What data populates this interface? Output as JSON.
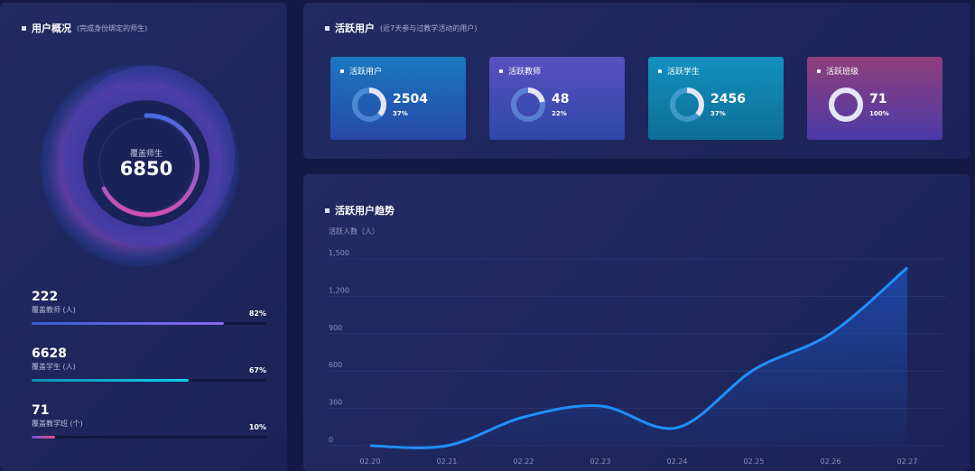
{
  "overview": {
    "title": "用户概况",
    "subtitle": "(完成身份绑定的师生)",
    "center_label": "覆盖师生",
    "center_value": "6850",
    "stats": [
      {
        "value": "222",
        "label": "覆盖教师 (人)",
        "percent": "82%",
        "fraction": 0.82
      },
      {
        "value": "6628",
        "label": "覆盖学生 (人)",
        "percent": "67%",
        "fraction": 0.67
      },
      {
        "value": "71",
        "label": "覆盖教学班 (个)",
        "percent": "10%",
        "fraction": 0.1
      }
    ]
  },
  "active": {
    "title": "活跃用户",
    "subtitle": "(近7天参与过教学活动的用户)",
    "cards": [
      {
        "label": "活跃用户",
        "value": "2504",
        "percent": "37%",
        "fraction": 0.37,
        "color": "#2a5fbf"
      },
      {
        "label": "活跃教师",
        "value": "48",
        "percent": "22%",
        "fraction": 0.22,
        "color": "#5a4fbf"
      },
      {
        "label": "活跃学生",
        "value": "2456",
        "percent": "37%",
        "fraction": 0.37,
        "color": "#0f87b0"
      },
      {
        "label": "活跃班级",
        "value": "71",
        "percent": "100%",
        "fraction": 1.0,
        "color": "#8a3f8a"
      }
    ]
  },
  "trend": {
    "title": "活跃用户趋势"
  },
  "chart_data": {
    "type": "area",
    "ylabel": "活跃人数（人）",
    "ylim": [
      0,
      1500
    ],
    "yticks": [
      "0",
      "300",
      "600",
      "900",
      "1,200",
      "1,500"
    ],
    "ytick_values": [
      0,
      300,
      600,
      900,
      1200,
      1500
    ],
    "categories": [
      "02.20",
      "02.21",
      "02.22",
      "02.23",
      "02.24",
      "02.25",
      "02.26",
      "02.27"
    ],
    "values": [
      0,
      0,
      230,
      320,
      145,
      610,
      900,
      1430
    ],
    "grid": true,
    "line_color": "#1e90ff"
  }
}
